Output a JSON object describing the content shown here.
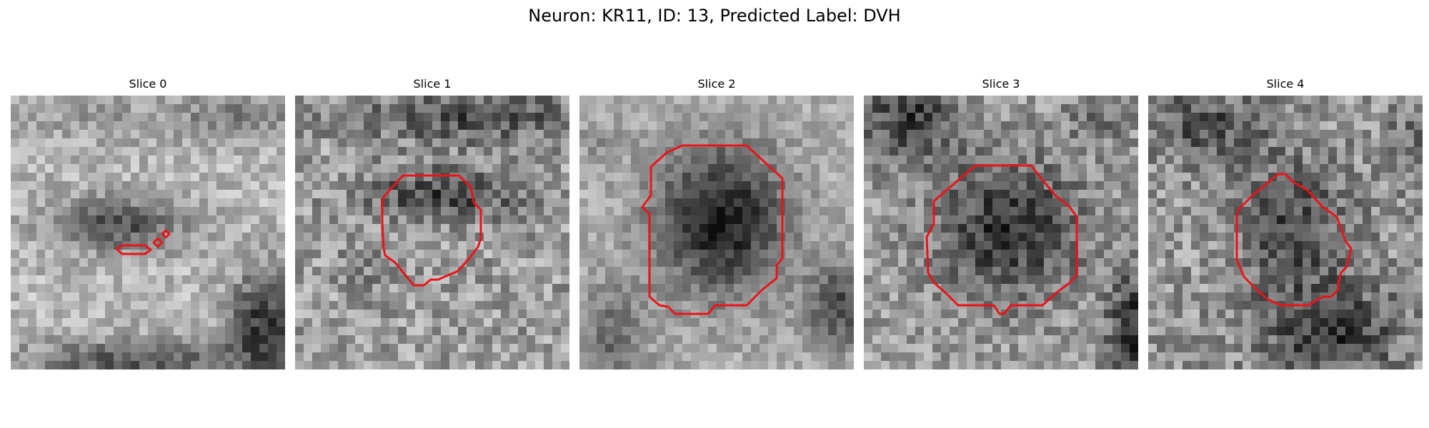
{
  "figure": {
    "title": "Neuron: KR11, ID: 13, Predicted Label: DVH"
  },
  "colors": {
    "contour": "#e8141a",
    "background": "#ffffff"
  },
  "panels": [
    {
      "title": "Slice 0"
    },
    {
      "title": "Slice 1"
    },
    {
      "title": "Slice 2"
    },
    {
      "title": "Slice 3"
    },
    {
      "title": "Slice 4"
    }
  ]
}
